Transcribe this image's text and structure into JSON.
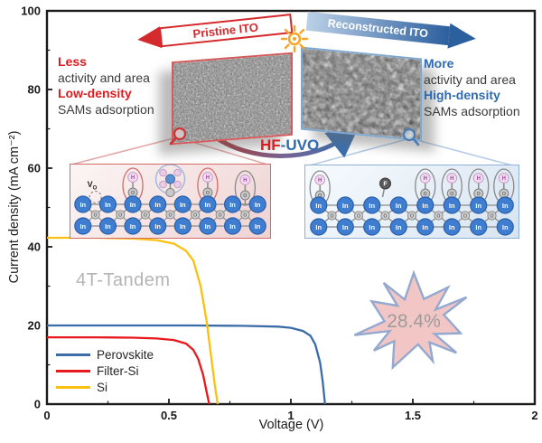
{
  "banners": {
    "pristine": "Pristine ITO",
    "reconstructed": "Reconstructed ITO"
  },
  "process": {
    "hf": "HF",
    "uvo": "-UVO"
  },
  "left_annotation": {
    "line1": "Less",
    "line2": "activity and area",
    "line3": "Low-density",
    "line4": "SAMs adsorption"
  },
  "right_annotation": {
    "line1": "More",
    "line2": "activity and area",
    "line3": "High-density",
    "line4": "SAMs adsorption"
  },
  "schematic": {
    "in_label": "In",
    "o_label": "O",
    "h_label": "H",
    "f_label": "F",
    "vacancy_v": "V",
    "vacancy_o": "O"
  },
  "annotations": {
    "tandem": "4T-Tandem",
    "efficiency": "28.4%"
  },
  "icons": {
    "sun": "sun-icon",
    "magnifier": "magnifier-icon"
  },
  "colors": {
    "accent_red": "#d42a2e",
    "accent_blue": "#2c5f9e",
    "text_red": "#e01b1e",
    "text_blue": "#2f6bb0",
    "gray_text": "#b4b4b4",
    "star_fill": "#f3c6c6",
    "star_stroke": "#94a9cf"
  },
  "chart_data": {
    "type": "line",
    "title": "",
    "xlabel": "Voltage (V)",
    "ylabel": "Current density (mA cm⁻²)",
    "xlim": [
      0,
      2
    ],
    "ylim": [
      0,
      100
    ],
    "xticks": [
      0,
      0.5,
      1,
      1.5,
      2
    ],
    "xtick_labels": [
      "0",
      "0.5",
      "1",
      "1.5",
      "2"
    ],
    "yticks": [
      0,
      20,
      40,
      60,
      80,
      100
    ],
    "minor_xticks": [
      0.25,
      0.75,
      1.25,
      1.75
    ],
    "minor_yticks": [
      10,
      30,
      50,
      70,
      90
    ],
    "grid": false,
    "legend_position": "lower-left",
    "series": [
      {
        "name": "Perovskite",
        "color": "#3c6ca8",
        "jsc": 20.0,
        "voc": 1.14,
        "points": [
          [
            0,
            20
          ],
          [
            0.3,
            20
          ],
          [
            0.6,
            20
          ],
          [
            0.8,
            19.9
          ],
          [
            0.95,
            19.7
          ],
          [
            1.0,
            19.4
          ],
          [
            1.05,
            18.6
          ],
          [
            1.08,
            17.4
          ],
          [
            1.1,
            15.2
          ],
          [
            1.12,
            10.5
          ],
          [
            1.13,
            6
          ],
          [
            1.14,
            0
          ]
        ]
      },
      {
        "name": "Filter-Si",
        "color": "#e8191c",
        "jsc": 17.0,
        "voc": 0.665,
        "points": [
          [
            0,
            17
          ],
          [
            0.2,
            17
          ],
          [
            0.35,
            16.9
          ],
          [
            0.45,
            16.7
          ],
          [
            0.52,
            16.3
          ],
          [
            0.57,
            15.4
          ],
          [
            0.6,
            13.8
          ],
          [
            0.62,
            11.5
          ],
          [
            0.64,
            7.5
          ],
          [
            0.655,
            3
          ],
          [
            0.665,
            0
          ]
        ]
      },
      {
        "name": "Si",
        "color": "#fdc010",
        "jsc": 42.3,
        "voc": 0.7,
        "points": [
          [
            0,
            42.3
          ],
          [
            0.2,
            42.3
          ],
          [
            0.35,
            42.1
          ],
          [
            0.45,
            41.7
          ],
          [
            0.52,
            40.8
          ],
          [
            0.57,
            39
          ],
          [
            0.6,
            36.5
          ],
          [
            0.63,
            30
          ],
          [
            0.655,
            21
          ],
          [
            0.675,
            11
          ],
          [
            0.69,
            4
          ],
          [
            0.7,
            0
          ]
        ]
      }
    ]
  }
}
